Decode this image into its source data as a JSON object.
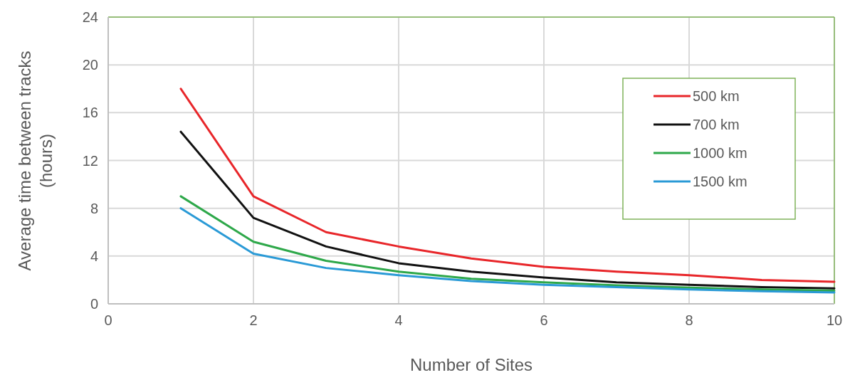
{
  "chart_data": {
    "type": "line",
    "xlabel": "Number of Sites",
    "ylabel": "Average time between tracks (hours)",
    "x": [
      1,
      2,
      3,
      4,
      5,
      6,
      7,
      8,
      9,
      10
    ],
    "xlim": [
      0,
      10
    ],
    "xticks": [
      0,
      2,
      4,
      6,
      8,
      10
    ],
    "ylim": [
      0,
      24
    ],
    "yticks": [
      0,
      4,
      8,
      12,
      16,
      20,
      24
    ],
    "grid": true,
    "legend": "right",
    "series": [
      {
        "name": "500 km",
        "color": "#e8262a",
        "values": [
          18,
          9,
          6,
          4.8,
          3.8,
          3.1,
          2.7,
          2.4,
          2.0,
          1.85
        ]
      },
      {
        "name": "700 km",
        "color": "#111111",
        "values": [
          14.4,
          7.2,
          4.8,
          3.4,
          2.7,
          2.2,
          1.8,
          1.6,
          1.4,
          1.3
        ]
      },
      {
        "name": "1000 km",
        "color": "#2ea84a",
        "values": [
          9,
          5.2,
          3.6,
          2.7,
          2.1,
          1.8,
          1.55,
          1.35,
          1.2,
          1.1
        ]
      },
      {
        "name": "1500 km",
        "color": "#2a9ad6",
        "values": [
          8,
          4.2,
          3.0,
          2.4,
          1.9,
          1.6,
          1.4,
          1.2,
          1.05,
          0.95
        ]
      }
    ]
  }
}
